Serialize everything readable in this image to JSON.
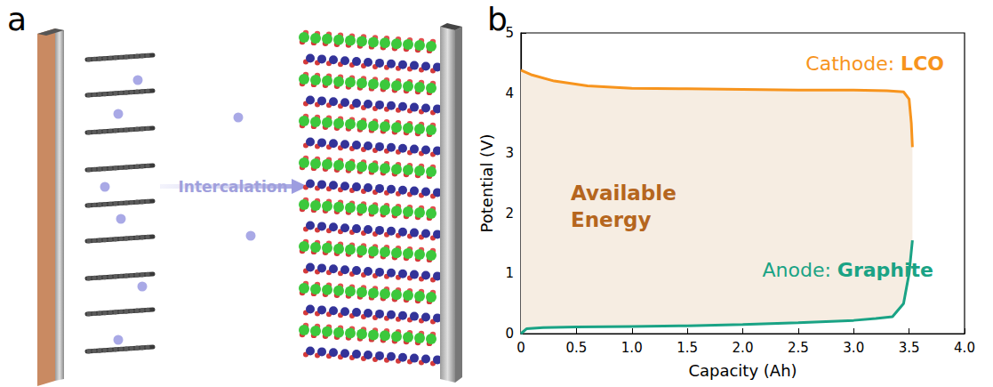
{
  "panel_a": {
    "letter": "a",
    "arrow_label": "Intercalation"
  },
  "chart_data": {
    "letter": "b",
    "type": "line",
    "x_label": "Capacity (Ah)",
    "y_label": "Potential (V)",
    "annotations": [
      "Available Energy"
    ],
    "series": [
      {
        "name": "Cathode: LCO",
        "color": "#f7941d",
        "x": [
          0,
          0.1,
          0.3,
          0.6,
          1.0,
          1.5,
          2.0,
          2.5,
          3.0,
          3.3,
          3.45,
          3.5,
          3.52,
          3.53
        ],
        "values": [
          4.38,
          4.3,
          4.2,
          4.12,
          4.08,
          4.07,
          4.06,
          4.05,
          4.05,
          4.04,
          4.02,
          3.9,
          3.5,
          3.1
        ]
      },
      {
        "name": "Anode: Graphite",
        "color": "#1aa385",
        "x": [
          0,
          0.05,
          0.2,
          0.5,
          1.0,
          1.5,
          2.0,
          2.5,
          3.0,
          3.2,
          3.35,
          3.45,
          3.5,
          3.53
        ],
        "values": [
          0,
          0.08,
          0.1,
          0.11,
          0.12,
          0.13,
          0.15,
          0.18,
          0.22,
          0.25,
          0.28,
          0.5,
          1.0,
          1.55
        ]
      }
    ],
    "xlim": [
      0,
      4
    ],
    "ylim": [
      0,
      5
    ],
    "xticks": [
      0,
      0.5,
      {
        "value": 1,
        "label": "1.0"
      },
      1.5,
      {
        "value": 2,
        "label": "2.0"
      },
      2.5,
      {
        "value": 3,
        "label": "3.0"
      },
      3.5,
      {
        "value": 4,
        "label": "4.0"
      }
    ],
    "yticks": [
      0,
      1,
      2,
      3,
      4,
      5
    ],
    "grid": false
  }
}
